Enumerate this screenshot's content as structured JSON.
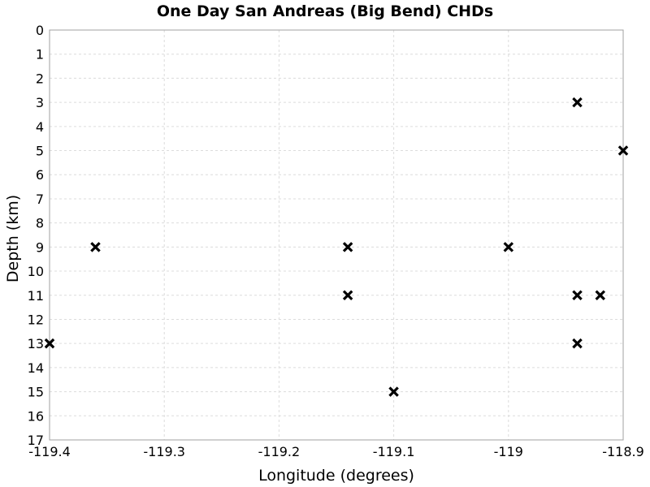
{
  "chart_data": {
    "type": "scatter",
    "title": "One Day San Andreas (Big Bend) CHDs",
    "xlabel": "Longitude (degrees)",
    "ylabel": "Depth (km)",
    "xlim": [
      -119.4,
      -118.9
    ],
    "ylim": [
      0,
      17
    ],
    "y_inverted": true,
    "grid": true,
    "marker": "x",
    "marker_color": "#000000",
    "x_ticks": [
      -119.4,
      -119.3,
      -119.2,
      -119.1,
      -119.0,
      -118.9
    ],
    "x_tick_labels": [
      "-119.4",
      "-119.3",
      "-119.2",
      "-119.1",
      "-119",
      "-118.9"
    ],
    "y_ticks": [
      0,
      1,
      2,
      3,
      4,
      5,
      6,
      7,
      8,
      9,
      10,
      11,
      12,
      13,
      14,
      15,
      16,
      17
    ],
    "y_tick_labels": [
      "0",
      "1",
      "2",
      "3",
      "4",
      "5",
      "6",
      "7",
      "8",
      "9",
      "10",
      "11",
      "12",
      "13",
      "14",
      "15",
      "16",
      "17"
    ],
    "points": [
      {
        "x": -118.94,
        "y": 3
      },
      {
        "x": -118.9,
        "y": 5
      },
      {
        "x": -119.36,
        "y": 9
      },
      {
        "x": -119.14,
        "y": 9
      },
      {
        "x": -119.0,
        "y": 9
      },
      {
        "x": -119.14,
        "y": 11
      },
      {
        "x": -118.94,
        "y": 11
      },
      {
        "x": -118.92,
        "y": 11
      },
      {
        "x": -119.4,
        "y": 13
      },
      {
        "x": -118.94,
        "y": 13
      },
      {
        "x": -119.1,
        "y": 15
      }
    ]
  }
}
